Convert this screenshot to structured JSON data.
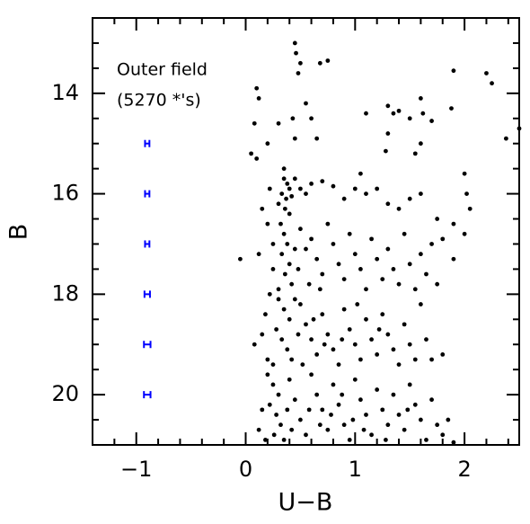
{
  "chart_data": {
    "type": "scatter",
    "xlabel": "U−B",
    "ylabel": "B",
    "annotations": [
      "Outer field",
      "(5270 *'s)"
    ],
    "xlim": [
      -1.4,
      2.5
    ],
    "ylim": [
      21,
      12.5
    ],
    "xticks": [
      {
        "value": -1,
        "label": "−1"
      },
      0,
      1,
      2
    ],
    "yticks": [
      14,
      16,
      18,
      20
    ],
    "xminorticks": [
      -1.4,
      -1.2,
      -0.8,
      -0.6,
      -0.4,
      -0.2,
      0.2,
      0.4,
      0.6,
      0.8,
      1.2,
      1.4,
      1.6,
      1.8,
      2.2,
      2.4
    ],
    "yminorticks": [
      12.5,
      13,
      13.5,
      14.5,
      15,
      15.5,
      16.5,
      17,
      17.5,
      18.5,
      19,
      19.5,
      20.5
    ],
    "series": [
      {
        "name": "stars",
        "color": "#000000",
        "x": [
          0.1,
          0.12,
          0.45,
          0.46,
          0.5,
          0.48,
          0.68,
          0.75,
          0.43,
          0.55,
          0.45,
          0.6,
          0.3,
          0.08,
          0.05,
          1.1,
          1.3,
          1.35,
          1.4,
          1.6,
          1.62,
          1.7,
          1.5,
          1.9,
          1.88,
          2.2,
          2.25,
          2.5,
          2.38,
          1.6,
          1.3,
          1.28,
          1.55,
          0.65,
          0.2,
          0.1,
          0.35,
          0.35,
          0.38,
          0.4,
          0.33,
          0.37,
          0.42,
          0.3,
          0.36,
          0.4,
          0.45,
          0.5,
          0.55,
          0.6,
          0.7,
          0.8,
          0.9,
          1.0,
          1.05,
          1.1,
          1.2,
          1.3,
          1.4,
          1.5,
          1.6,
          2.0,
          2.02,
          2.05,
          1.75,
          1.8,
          2.0,
          1.9,
          0.22,
          0.15,
          0.2,
          0.12,
          -0.05,
          0.25,
          0.32,
          0.35,
          0.38,
          0.33,
          0.4,
          0.36,
          0.42,
          0.3,
          0.5,
          0.55,
          0.6,
          0.65,
          0.7,
          0.75,
          0.8,
          0.85,
          0.9,
          0.95,
          1.0,
          1.05,
          1.1,
          1.15,
          1.2,
          1.25,
          1.3,
          1.35,
          1.4,
          1.45,
          1.5,
          1.55,
          1.6,
          1.65,
          1.7,
          0.25,
          0.22,
          0.45,
          0.48,
          0.58,
          0.68,
          1.9,
          1.75,
          0.3,
          0.35,
          0.4,
          0.28,
          0.33,
          0.38,
          0.42,
          0.25,
          0.5,
          0.55,
          0.6,
          0.65,
          0.7,
          0.75,
          0.8,
          0.85,
          0.9,
          0.95,
          1.0,
          1.05,
          1.1,
          1.15,
          1.2,
          1.25,
          1.3,
          1.35,
          1.4,
          1.45,
          1.5,
          1.55,
          1.6,
          1.65,
          1.7,
          1.8,
          0.15,
          0.08,
          0.2,
          0.18,
          0.45,
          0.48,
          0.52,
          0.62,
          0.72,
          0.88,
          1.02,
          1.22,
          0.2,
          0.25,
          0.3,
          0.22,
          0.28,
          0.32,
          0.26,
          0.35,
          0.4,
          0.45,
          0.5,
          0.55,
          0.6,
          0.65,
          0.7,
          0.75,
          0.8,
          0.85,
          0.9,
          0.95,
          1.0,
          1.05,
          1.1,
          1.15,
          1.2,
          1.25,
          1.3,
          1.35,
          1.4,
          1.45,
          1.5,
          1.55,
          1.6,
          1.65,
          1.7,
          1.75,
          1.8,
          0.15,
          0.12,
          0.18,
          0.38,
          0.42,
          0.58,
          0.68,
          0.78,
          0.88,
          0.98,
          1.08,
          1.28,
          1.48,
          1.85,
          1.9
        ],
        "values": [
          13.9,
          14.1,
          13.0,
          13.2,
          13.4,
          13.6,
          13.4,
          13.35,
          14.5,
          14.2,
          14.9,
          14.5,
          14.6,
          14.6,
          15.2,
          14.4,
          14.25,
          14.4,
          14.35,
          14.1,
          14.4,
          14.55,
          14.5,
          13.55,
          14.3,
          13.6,
          13.8,
          14.7,
          14.9,
          15.0,
          14.8,
          15.15,
          15.2,
          14.9,
          15.0,
          15.3,
          15.5,
          15.7,
          15.8,
          15.9,
          16.0,
          16.1,
          16.05,
          16.2,
          16.3,
          16.4,
          15.7,
          15.9,
          16.0,
          15.8,
          15.75,
          15.85,
          16.1,
          15.9,
          15.6,
          16.0,
          15.9,
          16.2,
          16.3,
          16.1,
          16.0,
          15.6,
          16.0,
          16.3,
          16.5,
          16.9,
          16.8,
          16.6,
          15.9,
          16.3,
          16.6,
          17.2,
          17.3,
          17.0,
          16.6,
          16.8,
          17.0,
          17.2,
          17.4,
          17.6,
          17.8,
          17.9,
          16.7,
          17.1,
          16.9,
          17.3,
          17.6,
          16.6,
          17.0,
          17.4,
          17.7,
          16.8,
          17.2,
          17.5,
          17.9,
          16.9,
          17.3,
          17.7,
          17.1,
          17.5,
          17.8,
          16.8,
          17.4,
          17.9,
          17.2,
          17.6,
          17.0,
          17.5,
          18.0,
          17.1,
          17.5,
          17.8,
          17.9,
          17.3,
          17.8,
          18.1,
          18.3,
          18.5,
          18.7,
          18.9,
          19.1,
          19.3,
          19.4,
          18.2,
          18.6,
          18.9,
          19.2,
          18.4,
          18.8,
          19.1,
          19.4,
          18.3,
          18.7,
          19.0,
          19.3,
          18.5,
          18.9,
          19.2,
          18.4,
          18.8,
          19.1,
          19.4,
          18.6,
          19.0,
          19.3,
          18.2,
          18.9,
          19.3,
          19.2,
          18.8,
          19.0,
          19.3,
          18.4,
          18.1,
          18.8,
          19.4,
          18.5,
          19.0,
          18.9,
          18.2,
          18.7,
          19.6,
          19.8,
          20.0,
          20.2,
          20.4,
          20.6,
          20.8,
          20.9,
          19.7,
          20.1,
          20.5,
          20.8,
          19.6,
          20.0,
          20.3,
          20.7,
          19.8,
          20.2,
          20.6,
          20.9,
          19.7,
          20.1,
          20.4,
          20.8,
          19.9,
          20.3,
          20.6,
          20.0,
          20.4,
          20.7,
          19.8,
          20.2,
          20.5,
          20.9,
          20.1,
          20.6,
          20.8,
          20.3,
          20.7,
          20.9,
          20.3,
          20.7,
          20.3,
          20.6,
          20.4,
          20.0,
          20.5,
          20.7,
          20.9,
          20.3,
          20.5,
          20.95
        ]
      },
      {
        "name": "errors",
        "color": "#0000ff",
        "x": [
          -0.9,
          -0.9,
          -0.9,
          -0.9,
          -0.9,
          -0.9
        ],
        "values": [
          15,
          16,
          17,
          18,
          19,
          20
        ],
        "xerr": [
          0.02,
          0.02,
          0.02,
          0.025,
          0.03,
          0.03
        ]
      }
    ]
  }
}
